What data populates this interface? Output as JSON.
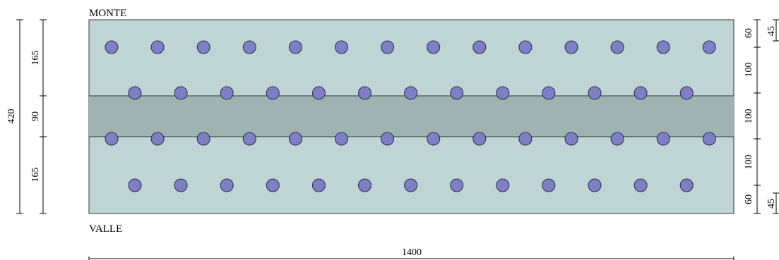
{
  "labels": {
    "top": "MONTE",
    "bottom": "VALLE"
  },
  "dimensions": {
    "width": "1400",
    "height_total": "420",
    "left_segments": [
      "165",
      "90",
      "165"
    ],
    "right_inner_segments": [
      "60",
      "100",
      "100",
      "100",
      "60"
    ],
    "right_outer_segments": [
      "45",
      "45"
    ]
  },
  "colors": {
    "slab": "#bfd5d5",
    "band": "#9fb3b3",
    "anchor_fill": "#7f7fc4",
    "anchor_stroke": "#2a2a4a",
    "outline": "#333333"
  },
  "layout_grid": {
    "rows": 4,
    "columns_full_rows": 14,
    "columns_offset_rows": 13
  }
}
